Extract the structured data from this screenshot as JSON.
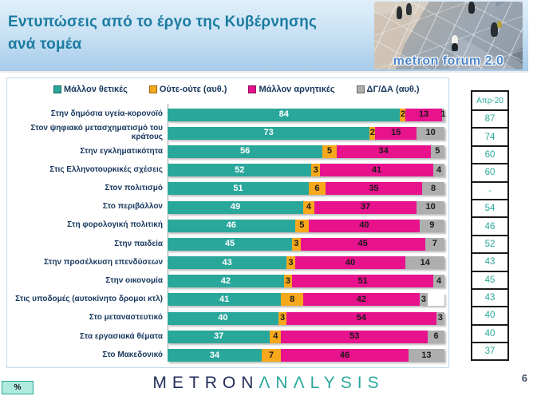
{
  "header": {
    "title_line1": "Εντυπώσεις από το έργο της Κυβέρνησης",
    "title_line2": "ανά τομέα",
    "logo_text": "metron forum 2.0"
  },
  "legend": {
    "items": [
      {
        "label": "Μάλλον θετικές",
        "color": "#2aa79b"
      },
      {
        "label": "Ούτε-ούτε  (αυθ.)",
        "color": "#f8a81b"
      },
      {
        "label": "Μάλλον αρνητικές",
        "color": "#e7128c"
      },
      {
        "label": "ΔΓ/ΔΑ (αυθ.)",
        "color": "#aeaeae"
      }
    ]
  },
  "chart_data": {
    "type": "bar",
    "orientation": "horizontal-stacked",
    "unit": "%",
    "xlim": [
      0,
      100
    ],
    "grid": false,
    "legend_position": "top",
    "categories": [
      "Στην δημόσια  υγεία-κορονοϊό",
      "Στον ψηφιακό μετασχηματισμό  του κράτους",
      "Στην εγκληματικότητα",
      "Στις Ελληνοτουρκικές  σχέσεις",
      "Στον πολιτισμό",
      "Στο περιβάλλον",
      "Στη φορολογική  πολιτική",
      "Στην παιδεία",
      "Στην προσέλκυση  επενδύσεων",
      "Στην οικονομία",
      "Στις υποδομές  (αυτοκίνητο  δρομοι  κτλ)",
      "Στο μεταναστευτικό",
      "Στα εργασιακά  θέματα",
      "Στο Μακεδονικό"
    ],
    "series": [
      {
        "name": "Μάλλον θετικές",
        "color": "#2aa79b",
        "values": [
          84,
          73,
          56,
          52,
          51,
          49,
          46,
          45,
          43,
          42,
          41,
          40,
          37,
          34
        ]
      },
      {
        "name": "Ούτε-ούτε (αυθ.)",
        "color": "#f8a81b",
        "values": [
          2,
          2,
          5,
          3,
          6,
          4,
          5,
          3,
          3,
          3,
          8,
          3,
          4,
          7
        ]
      },
      {
        "name": "Μάλλον αρνητικές",
        "color": "#e7128c",
        "values": [
          13,
          15,
          34,
          41,
          35,
          37,
          40,
          45,
          40,
          51,
          42,
          54,
          53,
          46
        ]
      },
      {
        "name": "ΔΓ/ΔΑ (αυθ.)",
        "color": "#aeaeae",
        "values": [
          1,
          10,
          5,
          4,
          8,
          10,
          9,
          7,
          14,
          4,
          3,
          3,
          6,
          13
        ]
      }
    ]
  },
  "side_table": {
    "header": "Απρ-20",
    "values": [
      "87",
      "74",
      "60",
      "60",
      "-",
      "54",
      "46",
      "52",
      "43",
      "45",
      "43",
      "40",
      "40",
      "37"
    ],
    "text_color": "#2aa79b"
  },
  "footer": {
    "percent_label": "%",
    "brand_part1": "METRON",
    "brand_part2": "ΛNΛLYSIS",
    "page_number": "6"
  }
}
